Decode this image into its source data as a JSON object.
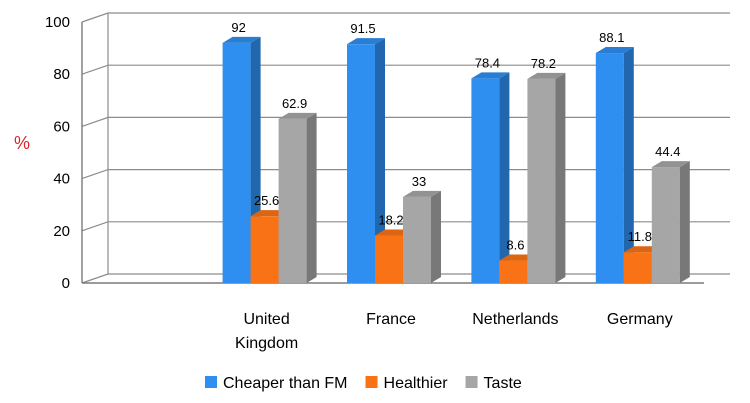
{
  "chart_data": {
    "type": "bar",
    "categories": [
      "United Kingdom",
      "France",
      "Netherlands",
      "Germany"
    ],
    "series": [
      {
        "name": "Cheaper than FM",
        "values": [
          92,
          91.5,
          78.4,
          88.1
        ],
        "color": "#2e8ff0"
      },
      {
        "name": "Healthier",
        "values": [
          25.6,
          18.2,
          8.6,
          11.8
        ],
        "color": "#f97316"
      },
      {
        "name": "Taste",
        "values": [
          62.9,
          33,
          78.2,
          44.4
        ],
        "color": "#a6a6a6"
      }
    ],
    "value_labels": {
      "Cheaper than FM": [
        "92",
        "91.5",
        "78.4",
        "88.1"
      ],
      "Healthier": [
        "25.6",
        "18.2",
        "8.6",
        "11.8"
      ],
      "Taste": [
        "62.9",
        "33",
        "78.2",
        "44.4"
      ]
    },
    "title": "",
    "xlabel": "",
    "ylabel": "%",
    "ylabel_color": "#d9262c",
    "ylim": [
      0,
      100
    ],
    "yticks": [
      0,
      20,
      40,
      60,
      80,
      100
    ],
    "grid": true,
    "style": "3d",
    "legend_position": "bottom"
  }
}
